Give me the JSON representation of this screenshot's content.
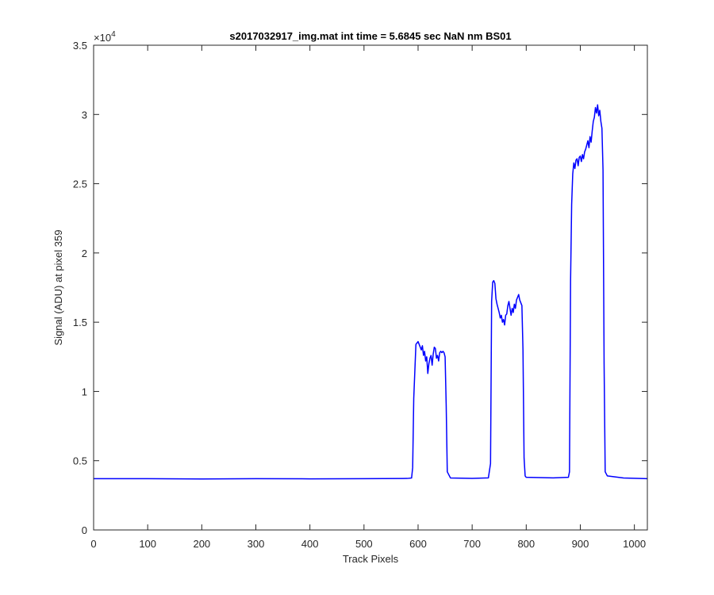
{
  "chart_data": {
    "type": "line",
    "title": "s2017032917_img.mat int time = 5.6845 sec  NaN nm BS01",
    "xlabel": "Track Pixels",
    "ylabel": "Signal (ADU) at pixel 359",
    "xlim": [
      0,
      1024
    ],
    "ylim": [
      0,
      35000
    ],
    "x_ticks": [
      0,
      100,
      200,
      300,
      400,
      500,
      600,
      700,
      800,
      900,
      1000
    ],
    "y_ticks": [
      0,
      5000,
      10000,
      15000,
      20000,
      25000,
      30000,
      35000
    ],
    "y_tick_labels": [
      "0",
      "0.5",
      "1",
      "1.5",
      "2",
      "2.5",
      "3",
      "3.5"
    ],
    "y_exponent_base": "×10",
    "y_exponent_power": "4",
    "grid": false,
    "legend": "none",
    "series": [
      {
        "color": "#0000ff",
        "x": [
          0,
          100,
          200,
          300,
          400,
          500,
          580,
          588,
          590,
          592,
          596,
          600,
          604,
          606,
          608,
          610,
          612,
          614,
          616,
          618,
          620,
          622,
          624,
          626,
          628,
          630,
          632,
          634,
          636,
          638,
          640,
          642,
          644,
          646,
          648,
          650,
          652,
          654,
          660,
          700,
          730,
          734,
          736,
          738,
          740,
          742,
          744,
          746,
          748,
          750,
          752,
          754,
          756,
          758,
          760,
          762,
          764,
          766,
          768,
          770,
          772,
          774,
          776,
          778,
          780,
          782,
          784,
          786,
          788,
          790,
          792,
          794,
          796,
          798,
          800,
          850,
          878,
          880,
          882,
          884,
          886,
          888,
          890,
          892,
          894,
          896,
          898,
          900,
          902,
          904,
          906,
          908,
          910,
          912,
          914,
          916,
          918,
          920,
          922,
          924,
          926,
          928,
          930,
          932,
          934,
          936,
          938,
          940,
          942,
          944,
          946,
          950,
          980,
          1024
        ],
        "y": [
          3700,
          3700,
          3680,
          3700,
          3690,
          3700,
          3720,
          3750,
          4500,
          9500,
          13400,
          13600,
          13200,
          13000,
          13300,
          12600,
          12900,
          12200,
          12500,
          11300,
          12000,
          12400,
          12600,
          11900,
          12700,
          13200,
          13100,
          12400,
          12600,
          12200,
          12800,
          12900,
          12800,
          12900,
          12800,
          12500,
          9000,
          4200,
          3750,
          3720,
          3760,
          4800,
          16500,
          17900,
          18000,
          17800,
          16700,
          16300,
          16000,
          15700,
          15300,
          15500,
          15000,
          15200,
          14800,
          15500,
          15600,
          16200,
          16500,
          16000,
          15500,
          16000,
          15700,
          16300,
          16000,
          16600,
          16800,
          17000,
          16600,
          16400,
          16200,
          13000,
          5200,
          3900,
          3800,
          3760,
          3800,
          4200,
          18000,
          23500,
          25700,
          26500,
          26100,
          26700,
          26800,
          26300,
          26900,
          27000,
          26600,
          27100,
          26800,
          27300,
          27500,
          27800,
          28100,
          27600,
          28400,
          28000,
          28800,
          29500,
          29800,
          30500,
          30100,
          30700,
          29900,
          30300,
          29500,
          29000,
          26000,
          12000,
          4200,
          3900,
          3750,
          3700
        ]
      }
    ]
  }
}
